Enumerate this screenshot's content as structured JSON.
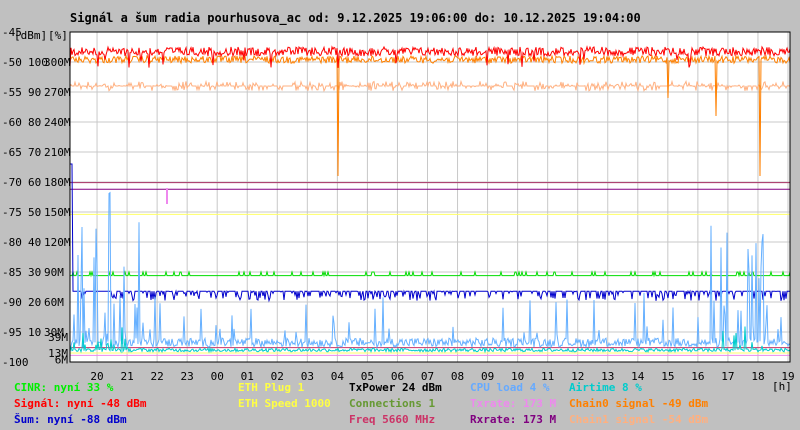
{
  "chart_data": {
    "type": "line",
    "title": "Signál a šum radia pourhusova_ac od: 9.12.2025 19:06:00 do: 10.12.2025 19:04:00",
    "axis_headers": {
      "dbm": "[dBm]",
      "pct": "[%]",
      "hour": "[h]"
    },
    "dbm_ticks": [
      "-45",
      "-50",
      "-55",
      "-60",
      "-65",
      "-70",
      "-75",
      "-80",
      "-85",
      "-90",
      "-95",
      "-100"
    ],
    "pct_ticks": [
      "100",
      "90",
      "80",
      "70",
      "60",
      "50",
      "40",
      "30",
      "20",
      "10"
    ],
    "rate_ticks": [
      "300M",
      "270M",
      "240M",
      "210M",
      "180M",
      "150M",
      "120M",
      "90M",
      "60M",
      "30M"
    ],
    "rate_ticks_colored": [
      {
        "label": "39M",
        "color": "#ee88ee"
      },
      {
        "label": "13M",
        "color": "#ee88ee"
      },
      {
        "label": "6M",
        "color": "#ee88ee"
      }
    ],
    "x_ticks": [
      "20",
      "21",
      "22",
      "23",
      "00",
      "01",
      "02",
      "03",
      "04",
      "05",
      "06",
      "07",
      "08",
      "09",
      "10",
      "11",
      "12",
      "13",
      "14",
      "15",
      "16",
      "17",
      "18",
      "19"
    ],
    "ylim_dbm": [
      -100,
      -45
    ],
    "grid": true,
    "series": [
      {
        "name": "Signál",
        "color": "#ff0000",
        "approx_dbm": -48
      },
      {
        "name": "Šum",
        "color": "#0000cc",
        "approx_dbm": -88
      },
      {
        "name": "CINR",
        "color": "#00dd00",
        "approx_pct": 33
      },
      {
        "name": "Chain0 signal",
        "color": "#ff8000",
        "approx_dbm": -49
      },
      {
        "name": "Chain1 signal",
        "color": "#ffb080",
        "approx_dbm": -54
      },
      {
        "name": "CPU load",
        "color": "#66b0ff",
        "approx_pct": 4
      },
      {
        "name": "Airtime",
        "color": "#00cccc",
        "approx_pct": 8
      },
      {
        "name": "Txrate",
        "color": "#ee88ee",
        "approx_mbps": 173
      },
      {
        "name": "Rxrate",
        "color": "#800080",
        "approx_mbps": 173
      },
      {
        "name": "Freq",
        "color": "#cc3366"
      },
      {
        "name": "ETH Speed",
        "color": "#ffff66"
      }
    ],
    "legend": [
      [
        {
          "text": "CINR: nyní 33 %",
          "color": "#00ee00"
        },
        {
          "text": "Signál: nyní -48 dBm",
          "color": "#ff0000"
        },
        {
          "text": "Šum: nyní -88 dBm",
          "color": "#0000cc"
        }
      ],
      [
        {
          "text": "ETH Plug 1",
          "color": "#ffff44"
        },
        {
          "text": "ETH Speed 1000",
          "color": "#ffff44"
        }
      ],
      [
        {
          "text": "TxPower 24 dBm",
          "color": "#000000"
        },
        {
          "text": "Connections 1",
          "color": "#669933"
        },
        {
          "text": "Freq 5660 MHz",
          "color": "#cc3366"
        }
      ],
      [
        {
          "text": "CPU load 4 %",
          "color": "#66aaff"
        },
        {
          "text": "Txrate: 173 M",
          "color": "#ee88ee"
        },
        {
          "text": "Rxrate: 173 M",
          "color": "#800080"
        }
      ],
      [
        {
          "text": "Airtime 8 %",
          "color": "#00cccc"
        },
        {
          "text": "Chain0 signal -49 dBm",
          "color": "#ff8000"
        },
        {
          "text": "Chain1 signal -54 dBm",
          "color": "#ffb080"
        }
      ]
    ]
  }
}
